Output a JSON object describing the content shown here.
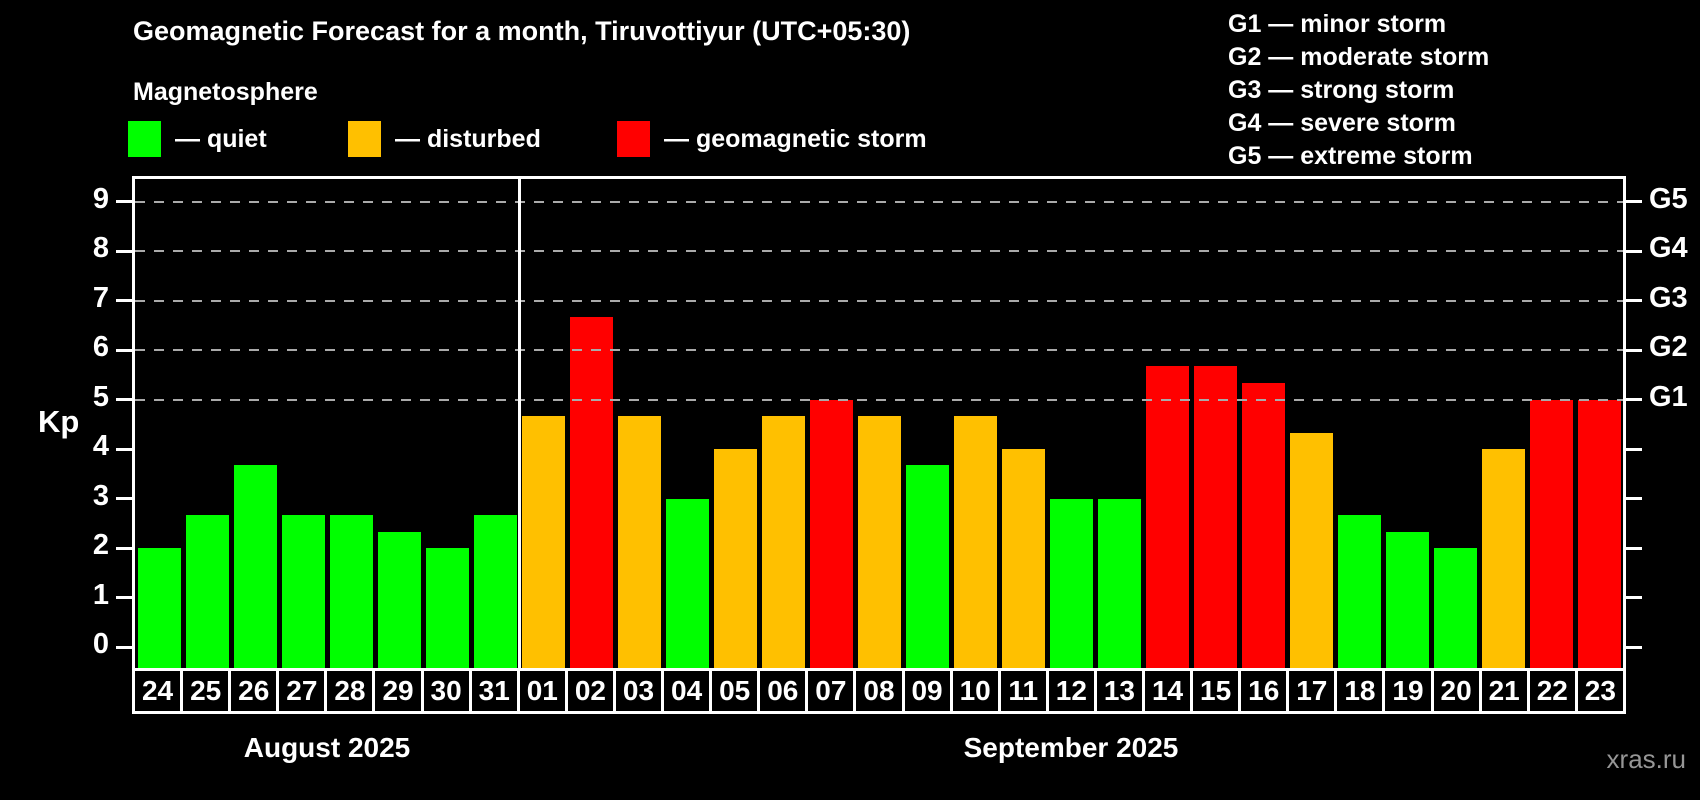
{
  "header": {
    "title": "Geomagnetic Forecast for a month, Tiruvottiyur (UTC+05:30)",
    "subtitle": "Magnetosphere"
  },
  "legend": {
    "items": [
      {
        "label": "— quiet",
        "status": "quiet"
      },
      {
        "label": "— disturbed",
        "status": "disturbed"
      },
      {
        "label": "— geomagnetic storm",
        "status": "storm"
      }
    ]
  },
  "storm_scale_legend": [
    "G1 — minor storm",
    "G2 — moderate storm",
    "G3 — strong storm",
    "G4 — severe storm",
    "G5 — extreme storm"
  ],
  "watermark": "xras.ru",
  "chart_data": {
    "type": "bar",
    "title": "Geomagnetic Forecast for a month, Tiruvottiyur (UTC+05:30)",
    "xlabel": "",
    "ylabel": "Kp",
    "ylim": [
      0,
      9
    ],
    "y_ticks": [
      0,
      1,
      2,
      3,
      4,
      5,
      6,
      7,
      8,
      9
    ],
    "gridlines_at": [
      5,
      6,
      7,
      8,
      9
    ],
    "grid": "dashed horizontal lines at Kp 5-9 only",
    "legend_position": "top-left",
    "right_axis": [
      {
        "kp": 5,
        "label": "G1"
      },
      {
        "kp": 6,
        "label": "G2"
      },
      {
        "kp": 7,
        "label": "G3"
      },
      {
        "kp": 8,
        "label": "G4"
      },
      {
        "kp": 9,
        "label": "G5"
      }
    ],
    "status_colors": {
      "quiet": "#00ff00",
      "disturbed": "#ffc000",
      "storm": "#ff0000"
    },
    "months": [
      {
        "label": "August 2025",
        "days": 8
      },
      {
        "label": "September 2025",
        "days": 23
      }
    ],
    "bars": [
      {
        "date": "24",
        "kp": 2.0,
        "status": "quiet"
      },
      {
        "date": "25",
        "kp": 2.67,
        "status": "quiet"
      },
      {
        "date": "26",
        "kp": 3.67,
        "status": "quiet"
      },
      {
        "date": "27",
        "kp": 2.67,
        "status": "quiet"
      },
      {
        "date": "28",
        "kp": 2.67,
        "status": "quiet"
      },
      {
        "date": "29",
        "kp": 2.33,
        "status": "quiet"
      },
      {
        "date": "30",
        "kp": 2.0,
        "status": "quiet"
      },
      {
        "date": "31",
        "kp": 2.67,
        "status": "quiet"
      },
      {
        "date": "01",
        "kp": 4.67,
        "status": "disturbed"
      },
      {
        "date": "02",
        "kp": 6.67,
        "status": "storm"
      },
      {
        "date": "03",
        "kp": 4.67,
        "status": "disturbed"
      },
      {
        "date": "04",
        "kp": 3.0,
        "status": "quiet"
      },
      {
        "date": "05",
        "kp": 4.0,
        "status": "disturbed"
      },
      {
        "date": "06",
        "kp": 4.67,
        "status": "disturbed"
      },
      {
        "date": "07",
        "kp": 5.0,
        "status": "storm"
      },
      {
        "date": "08",
        "kp": 4.67,
        "status": "disturbed"
      },
      {
        "date": "09",
        "kp": 3.67,
        "status": "quiet"
      },
      {
        "date": "10",
        "kp": 4.67,
        "status": "disturbed"
      },
      {
        "date": "11",
        "kp": 4.0,
        "status": "disturbed"
      },
      {
        "date": "12",
        "kp": 3.0,
        "status": "quiet"
      },
      {
        "date": "13",
        "kp": 3.0,
        "status": "quiet"
      },
      {
        "date": "14",
        "kp": 5.67,
        "status": "storm"
      },
      {
        "date": "15",
        "kp": 5.67,
        "status": "storm"
      },
      {
        "date": "16",
        "kp": 5.33,
        "status": "storm"
      },
      {
        "date": "17",
        "kp": 4.33,
        "status": "disturbed"
      },
      {
        "date": "18",
        "kp": 2.67,
        "status": "quiet"
      },
      {
        "date": "19",
        "kp": 2.33,
        "status": "quiet"
      },
      {
        "date": "20",
        "kp": 2.0,
        "status": "quiet"
      },
      {
        "date": "21",
        "kp": 4.0,
        "status": "disturbed"
      },
      {
        "date": "22",
        "kp": 5.0,
        "status": "storm"
      },
      {
        "date": "23",
        "kp": 5.0,
        "status": "storm"
      }
    ]
  }
}
